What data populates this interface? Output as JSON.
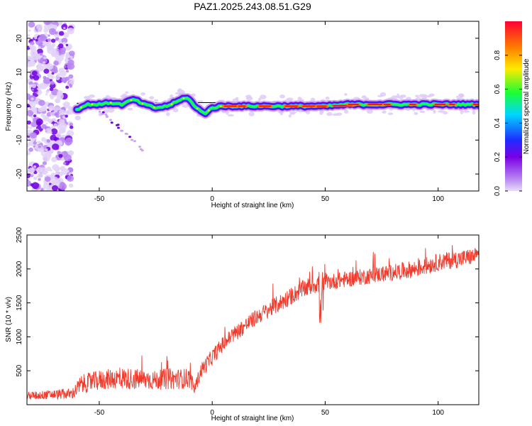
{
  "figure_title": "PAZ1.2025.243.08.51.G29",
  "colorbar": {
    "label": "Normalized spectral amplitude",
    "ticks": [
      "0.0",
      "0.2",
      "0.4",
      "0.6",
      "0.8"
    ],
    "tick_values": [
      0.0,
      0.2,
      0.4,
      0.6,
      0.8
    ],
    "range": [
      0,
      1
    ],
    "colors": [
      "#e8dcf8",
      "#7a00e6",
      "#1f2cff",
      "#00d6ff",
      "#1cff33",
      "#ffea00",
      "#ff7a00",
      "#ff0033"
    ]
  },
  "chart_data": [
    {
      "type": "heatmap",
      "title": "PAZ1.2025.243.08.51.G29",
      "xlabel": "Height of straight line (km)",
      "ylabel": "Frequency (Hz)",
      "xlim": [
        -82,
        118
      ],
      "ylim": [
        -25,
        25
      ],
      "xticks": [
        -50,
        0,
        50,
        100
      ],
      "xtick_labels": [
        "-50",
        "0",
        "50",
        "100"
      ],
      "yticks": [
        -20,
        -10,
        0,
        10,
        20
      ],
      "ytick_labels": [
        "-20",
        "-10",
        "0",
        "10",
        "20"
      ],
      "reference_line_x": [
        -60,
        118
      ],
      "reference_line_y": [
        0.8,
        1.6
      ],
      "ridge": {
        "name": "dominant frequency",
        "x": [
          -60,
          -55,
          -50,
          -45,
          -40,
          -35,
          -30,
          -25,
          -20,
          -15,
          -12,
          -10,
          -8,
          -5,
          -3,
          0,
          5,
          10,
          20,
          30,
          40,
          50,
          60,
          70,
          80,
          90,
          100,
          110,
          118
        ],
        "y": [
          -1,
          0.5,
          0.5,
          1,
          0.5,
          2,
          0.5,
          -0.5,
          0,
          1.5,
          2.5,
          2,
          0,
          -1.5,
          -2,
          -0.5,
          0,
          0,
          0,
          0,
          0,
          0,
          0.5,
          0.5,
          0.5,
          0.5,
          0.5,
          0.5,
          0.5
        ]
      },
      "noise_region_x": [
        -82,
        -62
      ],
      "sparse_streak": {
        "x": [
          -50,
          -30
        ],
        "y": [
          -1,
          -13
        ]
      }
    },
    {
      "type": "line",
      "xlabel": "Height of straight line (km)",
      "ylabel": "SNR (10 * v/v)",
      "xlim": [
        -82,
        118
      ],
      "ylim": [
        0,
        2500
      ],
      "xticks": [
        -50,
        0,
        50,
        100
      ],
      "xtick_labels": [
        "-50",
        "0",
        "50",
        "100"
      ],
      "yticks": [
        500,
        1000,
        1500,
        2000,
        2500
      ],
      "ytick_labels": [
        "500",
        "1000",
        "1500",
        "2000",
        "2500"
      ],
      "series": [
        {
          "name": "SNR",
          "color": "#f03a2c",
          "x": [
            -82,
            -70,
            -62,
            -58,
            -50,
            -45,
            -40,
            -35,
            -30,
            -25,
            -20,
            -15,
            -10,
            -8,
            -5,
            0,
            5,
            10,
            20,
            30,
            40,
            47,
            48,
            49,
            50,
            60,
            70,
            80,
            90,
            100,
            110,
            118
          ],
          "y": [
            130,
            150,
            160,
            300,
            360,
            380,
            390,
            380,
            370,
            360,
            380,
            380,
            390,
            220,
            500,
            700,
            900,
            1050,
            1300,
            1500,
            1700,
            1800,
            1300,
            1750,
            1800,
            1850,
            1900,
            1950,
            2000,
            2100,
            2150,
            2200
          ],
          "fluctuation": [
            60,
            70,
            80,
            140,
            150,
            150,
            160,
            160,
            150,
            140,
            160,
            150,
            150,
            80,
            120,
            120,
            120,
            120,
            120,
            130,
            130,
            150,
            150,
            130,
            120,
            120,
            120,
            120,
            130,
            130,
            130,
            120
          ]
        }
      ]
    }
  ]
}
